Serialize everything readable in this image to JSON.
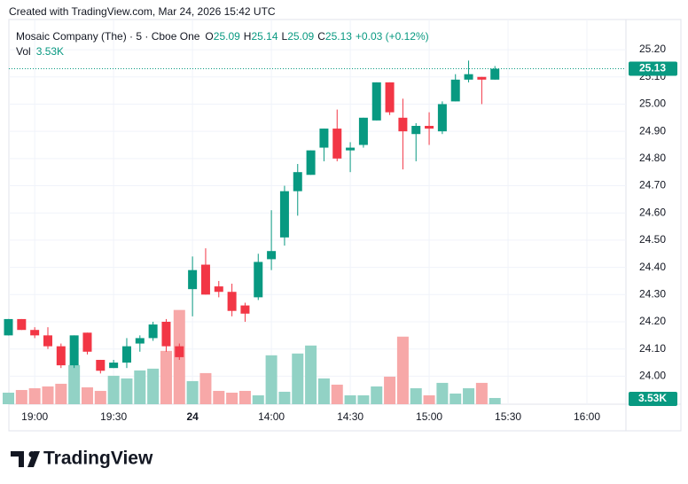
{
  "watermark": "Created with TradingView.com, Mar 24, 2026 15:42 UTC",
  "header": {
    "symbol": "Mosaic Company (The) · 5 · Cboe One",
    "open_label": "O",
    "high_label": "H",
    "low_label": "L",
    "close_label": "C",
    "change": "+0.03 (+0.12%)",
    "volume_label": "Vol"
  },
  "footer": "TradingView",
  "chart_data": {
    "type": "candlestick",
    "categories": [
      null,
      null,
      "19:00",
      null,
      null,
      null,
      null,
      null,
      "19:30",
      null,
      null,
      null,
      null,
      null,
      "24",
      null,
      null,
      null,
      null,
      null,
      "14:00",
      null,
      null,
      null,
      null,
      null,
      "14:30",
      null,
      null,
      null,
      null,
      null,
      "15:00",
      null,
      null,
      null,
      null,
      null,
      "15:30",
      null,
      null,
      null,
      null,
      null,
      "16:00",
      null,
      null
    ],
    "open": [
      24.15,
      24.21,
      24.17,
      24.15,
      24.11,
      24.04,
      24.16,
      24.06,
      24.03,
      24.05,
      24.12,
      24.14,
      24.2,
      24.11,
      24.32,
      24.41,
      24.33,
      24.31,
      24.26,
      24.29,
      24.43,
      24.51,
      24.68,
      24.74,
      24.84,
      24.91,
      24.83,
      24.85,
      24.94,
      25.08,
      24.95,
      24.89,
      24.92,
      24.9,
      25.01,
      25.09,
      25.1,
      25.09,
      null,
      null,
      null,
      null,
      null,
      null,
      null,
      null,
      null
    ],
    "high": [
      24.21,
      24.21,
      24.18,
      24.18,
      24.12,
      24.15,
      24.16,
      24.06,
      24.06,
      24.14,
      24.15,
      24.2,
      24.21,
      24.12,
      24.44,
      24.47,
      24.35,
      24.34,
      24.27,
      24.45,
      24.61,
      24.7,
      24.78,
      24.83,
      24.91,
      24.98,
      24.86,
      24.95,
      25.08,
      25.08,
      25.02,
      24.93,
      24.97,
      25.01,
      25.11,
      25.16,
      25.1,
      25.14,
      null,
      null,
      null,
      null,
      null,
      null,
      null,
      null,
      null
    ],
    "low": [
      24.15,
      24.17,
      24.14,
      24.1,
      24.03,
      24.03,
      24.08,
      24.01,
      24.03,
      24.03,
      24.09,
      24.13,
      24.09,
      24.06,
      24.22,
      24.3,
      24.29,
      24.22,
      24.2,
      24.28,
      24.39,
      24.48,
      24.59,
      24.74,
      24.79,
      24.79,
      24.75,
      24.84,
      24.94,
      24.96,
      24.76,
      24.79,
      24.85,
      24.89,
      25.01,
      25.08,
      25.0,
      25.09,
      null,
      null,
      null,
      null,
      null,
      null,
      null,
      null,
      null
    ],
    "close": [
      24.21,
      24.17,
      24.15,
      24.11,
      24.04,
      24.15,
      24.09,
      24.02,
      24.05,
      24.11,
      24.14,
      24.19,
      24.11,
      24.07,
      24.39,
      24.3,
      24.31,
      24.24,
      24.23,
      24.42,
      24.46,
      24.68,
      24.75,
      24.83,
      24.91,
      24.8,
      24.84,
      24.95,
      25.08,
      24.97,
      24.9,
      24.92,
      24.91,
      25.0,
      25.09,
      25.11,
      25.09,
      25.13,
      null,
      null,
      null,
      null,
      null,
      null,
      null,
      null,
      null
    ],
    "volume": [
      6550,
      8060,
      9070,
      10080,
      11590,
      22180,
      9580,
      7560,
      16130,
      14620,
      19150,
      20160,
      30240,
      53420,
      13100,
      17640,
      7560,
      6550,
      7560,
      5040,
      27720,
      7060,
      28730,
      33260,
      14620,
      11090,
      5040,
      5040,
      10080,
      15620,
      38300,
      9070,
      5040,
      12100,
      6050,
      9070,
      12100,
      3530,
      null,
      null,
      null,
      null,
      null,
      null,
      null,
      null,
      null
    ],
    "volume_labels": [
      null,
      null,
      null,
      null,
      null,
      null,
      null,
      null,
      null,
      null,
      null,
      null,
      null,
      null,
      null,
      null,
      null,
      null,
      null,
      null,
      null,
      null,
      null,
      null,
      null,
      null,
      null,
      null,
      null,
      null,
      null,
      null,
      null,
      null,
      null,
      null,
      null,
      "3.53K",
      null,
      null,
      null,
      null,
      null,
      null,
      null,
      null,
      null
    ],
    "ylim": [
      23.897,
      25.311
    ],
    "yticks": [
      {
        "value": 24.0,
        "label": "24.00"
      },
      {
        "value": 24.1,
        "label": "24.10"
      },
      {
        "value": 24.2,
        "label": "24.20"
      },
      {
        "value": 24.3,
        "label": "24.30"
      },
      {
        "value": 24.4,
        "label": "24.40"
      },
      {
        "value": 24.5,
        "label": "24.50"
      },
      {
        "value": 24.6,
        "label": "24.60"
      },
      {
        "value": 24.7,
        "label": "24.70"
      },
      {
        "value": 24.8,
        "label": "24.80"
      },
      {
        "value": 24.9,
        "label": "24.90"
      },
      {
        "value": 25.0,
        "label": "25.00"
      },
      {
        "value": 25.1,
        "label": "25.10"
      },
      {
        "value": 25.2,
        "label": "25.20"
      }
    ],
    "grid": true,
    "up_color": "#089981",
    "down_color": "#f23645",
    "volume_up_color": "#92d2c5",
    "volume_down_color": "#f7a8a8"
  }
}
